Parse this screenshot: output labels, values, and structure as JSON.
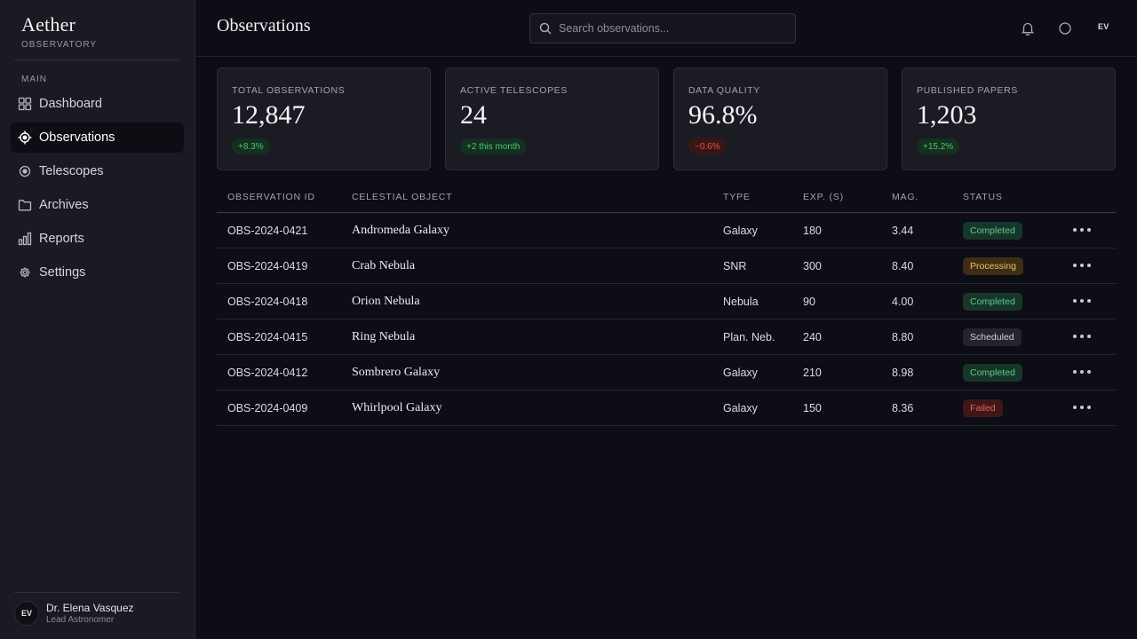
{
  "brand": {
    "title": "Aether",
    "subtitle": "OBSERVATORY"
  },
  "nav": {
    "section": "MAIN",
    "items": [
      {
        "label": "Dashboard",
        "icon": "grid-icon",
        "active": false
      },
      {
        "label": "Observations",
        "icon": "target-icon",
        "active": true
      },
      {
        "label": "Telescopes",
        "icon": "lens-icon",
        "active": false
      },
      {
        "label": "Archives",
        "icon": "folder-icon",
        "active": false
      },
      {
        "label": "Reports",
        "icon": "bar-chart-icon",
        "active": false
      },
      {
        "label": "Settings",
        "icon": "gear-icon",
        "active": false
      }
    ]
  },
  "user": {
    "initials": "EV",
    "name": "Dr. Elena Vasquez",
    "role": "Lead Astronomer"
  },
  "header": {
    "title": "Observations",
    "search_placeholder": "Search observations...",
    "initials": "EV"
  },
  "stats": [
    {
      "label": "TOTAL OBSERVATIONS",
      "value": "12,847",
      "delta": "+8.3%",
      "trend": "up"
    },
    {
      "label": "ACTIVE TELESCOPES",
      "value": "24",
      "delta": "+2 this month",
      "trend": "up"
    },
    {
      "label": "DATA QUALITY",
      "value": "96.8%",
      "delta": "−0.6%",
      "trend": "down"
    },
    {
      "label": "PUBLISHED PAPERS",
      "value": "1,203",
      "delta": "+15.2%",
      "trend": "up"
    }
  ],
  "table": {
    "columns": [
      "OBSERVATION ID",
      "CELESTIAL OBJECT",
      "TYPE",
      "EXP. (S)",
      "MAG.",
      "STATUS"
    ],
    "rows": [
      {
        "id": "OBS-2024-0421",
        "object": "Andromeda Galaxy",
        "type": "Galaxy",
        "exp": "180",
        "mag": "3.44",
        "status": "Completed",
        "status_kind": "completed"
      },
      {
        "id": "OBS-2024-0419",
        "object": "Crab Nebula",
        "type": "SNR",
        "exp": "300",
        "mag": "8.40",
        "status": "Processing",
        "status_kind": "processing"
      },
      {
        "id": "OBS-2024-0418",
        "object": "Orion Nebula",
        "type": "Nebula",
        "exp": "90",
        "mag": "4.00",
        "status": "Completed",
        "status_kind": "completed"
      },
      {
        "id": "OBS-2024-0415",
        "object": "Ring Nebula",
        "type": "Plan. Neb.",
        "exp": "240",
        "mag": "8.80",
        "status": "Scheduled",
        "status_kind": "scheduled"
      },
      {
        "id": "OBS-2024-0412",
        "object": "Sombrero Galaxy",
        "type": "Galaxy",
        "exp": "210",
        "mag": "8.98",
        "status": "Completed",
        "status_kind": "completed"
      },
      {
        "id": "OBS-2024-0409",
        "object": "Whirlpool Galaxy",
        "type": "Galaxy",
        "exp": "150",
        "mag": "8.36",
        "status": "Failed",
        "status_kind": "failed"
      }
    ]
  },
  "colors": {
    "background": "#0d0d15",
    "sidebar": "#1a1a22",
    "card": "#1b1b24",
    "positive": "#4fc278",
    "negative": "#e5534b",
    "processing": "#f0c066"
  }
}
